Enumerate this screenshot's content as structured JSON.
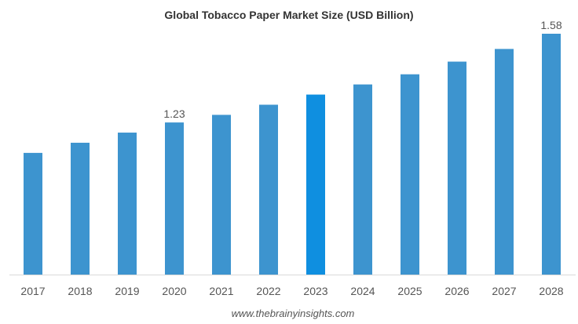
{
  "chart_data": {
    "type": "bar",
    "title": "Global Tobacco Paper Market Size (USD Billion)",
    "xlabel": "",
    "ylabel": "",
    "categories": [
      "2017",
      "2018",
      "2019",
      "2020",
      "2021",
      "2022",
      "2023",
      "2024",
      "2025",
      "2026",
      "2027",
      "2028"
    ],
    "values": [
      1.11,
      1.15,
      1.19,
      1.23,
      1.26,
      1.3,
      1.34,
      1.38,
      1.42,
      1.47,
      1.52,
      1.58
    ],
    "data_labels": {
      "3": "1.23",
      "11": "1.58"
    },
    "ylim": [
      0.63,
      1.58
    ],
    "y_axis_visible": false,
    "grid": false,
    "legend": "none",
    "colors": {
      "bar": "#3d94cf",
      "highlight": "#0f8fe0",
      "axis": "#d9d9d9"
    },
    "highlight_index": 6
  },
  "credit": "www.thebrainyinsights.com"
}
